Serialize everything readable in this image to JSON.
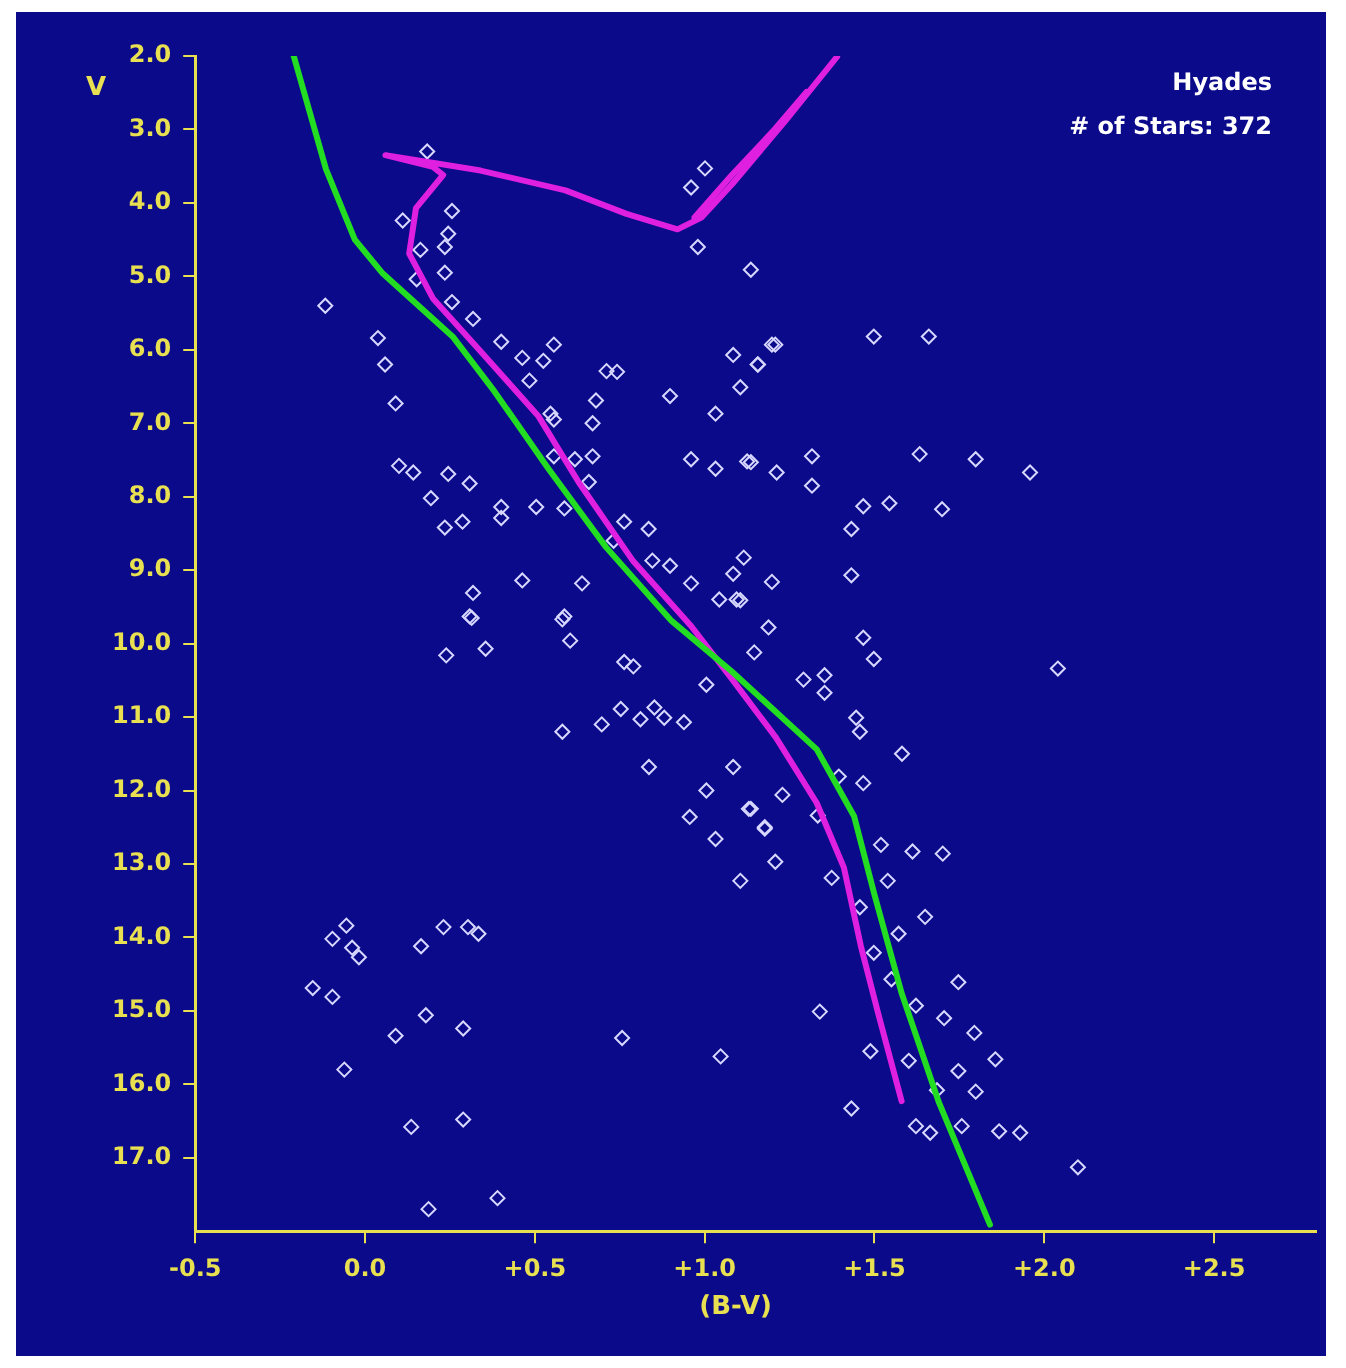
{
  "chart_data": {
    "type": "scatter",
    "xlabel": "(B-V)",
    "ylabel": "V",
    "annotations": [
      "Hyades",
      "# of Stars: 372"
    ],
    "xlim": [
      -0.5,
      2.8
    ],
    "ylim": [
      18,
      2
    ],
    "xticks": [
      {
        "value": -0.5,
        "label": "-0.5"
      },
      {
        "value": 0,
        "label": "0.0"
      },
      {
        "value": 0.5,
        "label": "+0.5"
      },
      {
        "value": 1,
        "label": "+1.0"
      },
      {
        "value": 1.5,
        "label": "+1.5"
      },
      {
        "value": 2,
        "label": "+2.0"
      },
      {
        "value": 2.5,
        "label": "+2.5"
      }
    ],
    "yticks": [
      {
        "value": 2,
        "label": "2.0"
      },
      {
        "value": 3,
        "label": "3.0"
      },
      {
        "value": 4,
        "label": "4.0"
      },
      {
        "value": 5,
        "label": "5.0"
      },
      {
        "value": 6,
        "label": "6.0"
      },
      {
        "value": 7,
        "label": "7.0"
      },
      {
        "value": 8,
        "label": "8.0"
      },
      {
        "value": 9,
        "label": "9.0"
      },
      {
        "value": 10,
        "label": "10.0"
      },
      {
        "value": 11,
        "label": "11.0"
      },
      {
        "value": 12,
        "label": "12.0"
      },
      {
        "value": 13,
        "label": "13.0"
      },
      {
        "value": 14,
        "label": "14.0"
      },
      {
        "value": 15,
        "label": "15.0"
      },
      {
        "value": 16,
        "label": "16.0"
      },
      {
        "value": 17,
        "label": "17.0"
      }
    ],
    "grid": false,
    "legend": false,
    "series": [
      {
        "type": "line",
        "color": "#22dd22",
        "marker": "none",
        "line_style": "solid",
        "x": [
          -0.21,
          -0.115,
          -0.03,
          0.05,
          0.26,
          0.38,
          0.54,
          0.71,
          0.9,
          1.08,
          1.33,
          1.44,
          1.5,
          1.58,
          1.69,
          1.84
        ],
        "values": [
          2.0,
          3.54,
          4.5,
          4.95,
          5.83,
          6.56,
          7.62,
          8.69,
          9.68,
          10.38,
          11.44,
          12.35,
          13.42,
          14.76,
          16.25,
          17.91
        ]
      },
      {
        "type": "line",
        "color": "#e020e0",
        "marker": "none",
        "line_style": "solid",
        "x": [
          1.39,
          1.24,
          1.08,
          0.99,
          0.92,
          0.77,
          0.59,
          0.34,
          0.06,
          0.2,
          0.23,
          0.15,
          0.13,
          0.2,
          0.34,
          0.51,
          0.63,
          0.79,
          0.96,
          1.08,
          1.21,
          1.33,
          1.41,
          1.46,
          1.51,
          1.58
        ],
        "values": [
          2.01,
          2.87,
          3.75,
          4.2,
          4.36,
          4.15,
          3.83,
          3.56,
          3.35,
          3.51,
          3.62,
          4.07,
          4.69,
          5.3,
          6.02,
          6.9,
          7.81,
          8.88,
          9.76,
          10.48,
          11.28,
          12.17,
          13.05,
          14.12,
          15.02,
          16.23
        ]
      },
      {
        "type": "line",
        "color": "#e020e0",
        "marker": "none",
        "line_style": "solid",
        "x": [
          0.97,
          1.08,
          1.2,
          1.3
        ],
        "values": [
          4.2,
          3.62,
          3.03,
          2.49
        ]
      },
      {
        "color": "#d8d8ff",
        "marker": "diamond",
        "x": [
          0.183,
          0.256,
          0.245,
          0.235,
          0.111,
          0.163,
          0.152,
          0.235,
          0.256,
          0.318,
          0.401,
          0.556,
          0.525,
          0.463,
          0.484,
          0.711,
          0.742,
          0.898,
          0.68,
          0.67,
          0.546,
          0.556,
          1.032,
          -0.117,
          0.038,
          0.059,
          0.09,
          0.1,
          0.142,
          0.245,
          0.308,
          0.194,
          0.235,
          0.287,
          0.401,
          0.401,
          0.504,
          0.587,
          0.556,
          0.618,
          0.67,
          0.659,
          0.763,
          0.835,
          0.732,
          0.846,
          0.898,
          0.96,
          0.463,
          0.318,
          0.308,
          0.587,
          0.639,
          0.98,
          0.96,
          1.001,
          1.136,
          1.084,
          1.157,
          1.105,
          1.198,
          0.96,
          1.032,
          1.125,
          1.115,
          1.084,
          1.043,
          1.094,
          1.208,
          1.156,
          1.498,
          1.66,
          1.136,
          1.212,
          1.316,
          1.316,
          1.633,
          1.798,
          1.958,
          1.467,
          1.544,
          1.699,
          1.432,
          1.198,
          1.432,
          0.314,
          0.239,
          0.355,
          0.581,
          0.604,
          0.763,
          0.79,
          1.005,
          0.581,
          0.697,
          0.753,
          0.811,
          0.852,
          0.881,
          0.939,
          0.836,
          1.084,
          1.005,
          0.956,
          1.032,
          1.13,
          1.177,
          1.105,
          -0.055,
          -0.096,
          -0.038,
          -0.018,
          0.165,
          0.231,
          0.303,
          0.334,
          -0.154,
          -0.096,
          0.179,
          0.289,
          0.09,
          0.757,
          1.047,
          -0.061,
          0.136,
          0.289,
          0.187,
          0.39,
          1.105,
          1.188,
          1.467,
          1.498,
          2.04,
          1.146,
          1.291,
          1.353,
          1.353,
          1.446,
          1.457,
          1.581,
          1.229,
          1.136,
          1.177,
          1.208,
          1.374,
          1.519,
          1.612,
          1.701,
          1.649,
          1.457,
          1.539,
          1.571,
          1.747,
          1.339,
          1.488,
          1.622,
          1.705,
          1.794,
          1.856,
          1.747,
          1.798,
          1.432,
          1.622,
          1.664,
          1.757,
          1.867,
          1.929,
          2.099,
          1.395,
          1.333,
          1.467,
          1.601,
          1.55,
          1.498,
          1.684
        ],
        "values": [
          3.3,
          4.11,
          4.42,
          4.6,
          4.24,
          4.64,
          5.04,
          4.95,
          5.35,
          5.58,
          5.89,
          5.93,
          6.15,
          6.11,
          6.42,
          6.29,
          6.3,
          6.63,
          6.69,
          7.0,
          6.87,
          6.95,
          6.87,
          5.4,
          5.84,
          6.2,
          6.73,
          7.58,
          7.67,
          7.69,
          7.82,
          8.02,
          8.42,
          8.34,
          8.14,
          8.29,
          8.14,
          8.16,
          7.45,
          7.49,
          7.45,
          7.8,
          8.34,
          8.44,
          8.6,
          8.87,
          8.94,
          9.18,
          9.14,
          9.31,
          9.63,
          9.63,
          9.18,
          4.6,
          3.79,
          3.53,
          4.91,
          6.07,
          6.2,
          6.51,
          5.93,
          7.49,
          7.62,
          7.52,
          8.83,
          9.05,
          9.4,
          9.4,
          5.93,
          6.2,
          5.82,
          5.82,
          7.53,
          7.67,
          7.45,
          7.85,
          7.42,
          7.49,
          7.67,
          8.13,
          8.09,
          8.17,
          8.44,
          9.16,
          9.07,
          9.65,
          10.16,
          10.07,
          9.67,
          9.96,
          10.25,
          10.31,
          10.56,
          11.2,
          11.1,
          10.89,
          11.03,
          10.87,
          11.01,
          11.07,
          11.68,
          11.68,
          12.0,
          12.36,
          12.66,
          12.25,
          12.5,
          13.23,
          13.84,
          14.02,
          14.14,
          14.27,
          14.12,
          13.86,
          13.86,
          13.95,
          14.69,
          14.81,
          15.06,
          15.24,
          15.34,
          15.37,
          15.62,
          15.8,
          16.58,
          16.48,
          17.7,
          17.55,
          9.41,
          9.78,
          9.92,
          10.21,
          10.34,
          10.12,
          10.49,
          10.43,
          10.67,
          11.01,
          11.2,
          11.5,
          12.06,
          12.25,
          12.52,
          12.97,
          13.19,
          12.74,
          12.83,
          12.86,
          13.72,
          13.59,
          13.23,
          13.95,
          14.61,
          15.01,
          15.55,
          14.93,
          15.1,
          15.3,
          15.66,
          15.82,
          16.1,
          16.33,
          16.57,
          16.66,
          16.57,
          16.64,
          16.66,
          17.13,
          11.81,
          12.34,
          11.9,
          15.68,
          14.57,
          14.21,
          16.08
        ]
      }
    ]
  }
}
